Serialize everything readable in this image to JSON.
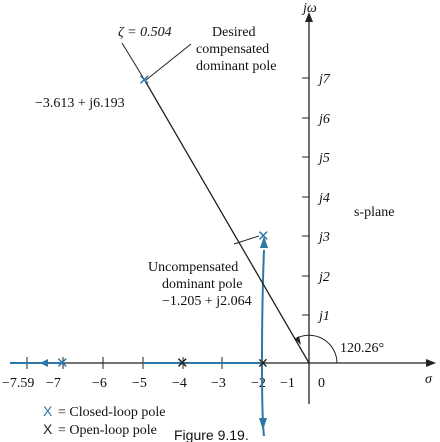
{
  "labels": {
    "j_omega": "jω",
    "sigma": "σ",
    "s_plane": "s-plane",
    "zeta": "ζ = 0.504",
    "desired_l1": "Desired",
    "desired_l2": "compensated",
    "desired_l3": "dominant pole",
    "desired_value": "−3.613 + j6.193",
    "uncomp_l1": "Uncompensated",
    "uncomp_l2": "dominant pole",
    "uncomp_value": "−1.205 + j2.064",
    "angle": "120.26°",
    "legend_closed": "= Closed-loop pole",
    "legend_open": "= Open-loop pole",
    "legend_closed_symbol": "X",
    "legend_open_symbol": "X",
    "caption": "Figure 9.19."
  },
  "y_ticks": [
    "j7",
    "j6",
    "j5",
    "j4",
    "j3",
    "j2",
    "j1"
  ],
  "x_ticks": [
    "−7.59",
    "−7",
    "−6",
    "−5",
    "−4",
    "−3",
    "−2",
    "−1",
    "0"
  ],
  "colors": {
    "locus": "#2d77a6",
    "axes": "#222222"
  }
}
